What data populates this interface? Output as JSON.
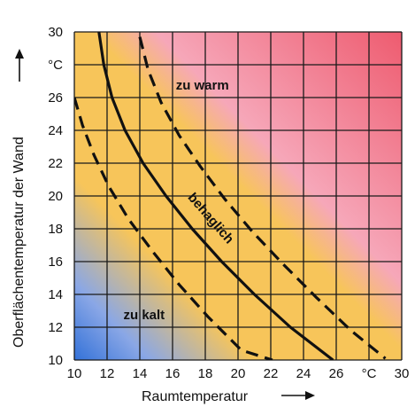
{
  "chart_data": {
    "type": "line",
    "xlabel": "Raumtemperatur",
    "ylabel": "Oberflächentemperatur der Wand",
    "xlim": [
      10,
      30
    ],
    "ylim": [
      10,
      30
    ],
    "x_ticks": [
      "10",
      "12",
      "14",
      "16",
      "18",
      "20",
      "22",
      "24",
      "26",
      "°C",
      "30"
    ],
    "y_ticks": [
      "30",
      "°C",
      "26",
      "24",
      "22",
      "20",
      "18",
      "16",
      "14",
      "12",
      "10"
    ],
    "grid": true,
    "background_colors": {
      "cold": "#2f6fd8",
      "comfortable": "#f7c55a",
      "warm": "#ee5a6e"
    },
    "series": [
      {
        "style": "solid",
        "x": [
          11.5,
          11.8,
          12.3,
          13.1,
          14.2,
          15.6,
          17.2,
          19.0,
          21.0,
          23.2,
          25.8
        ],
        "y": [
          30,
          28,
          26,
          24,
          22,
          20,
          18,
          16,
          14,
          12,
          10
        ]
      },
      {
        "style": "dashed",
        "x": [
          14.0,
          14.5,
          15.3,
          16.4,
          17.7,
          19.2,
          20.9,
          22.8,
          24.8,
          26.9,
          29.0
        ],
        "y": [
          29.7,
          27.7,
          25.7,
          23.7,
          21.8,
          19.8,
          17.8,
          15.8,
          13.8,
          11.8,
          10.1
        ]
      },
      {
        "style": "dashed",
        "x": [
          10.0,
          10.5,
          11.2,
          12.1,
          13.3,
          14.8,
          16.4,
          18.2,
          20.2,
          22.1
        ],
        "y": [
          26.0,
          24.3,
          22.5,
          20.6,
          18.6,
          16.6,
          14.6,
          12.6,
          10.6,
          10.0
        ]
      }
    ],
    "annotations": [
      {
        "text": "zu warm",
        "x": 16.2,
        "y": 26.5
      },
      {
        "text": "behaglich",
        "x": 16.9,
        "y": 19.9,
        "rotation": 49
      },
      {
        "text": "zu kalt",
        "x": 13.0,
        "y": 12.5
      }
    ]
  }
}
